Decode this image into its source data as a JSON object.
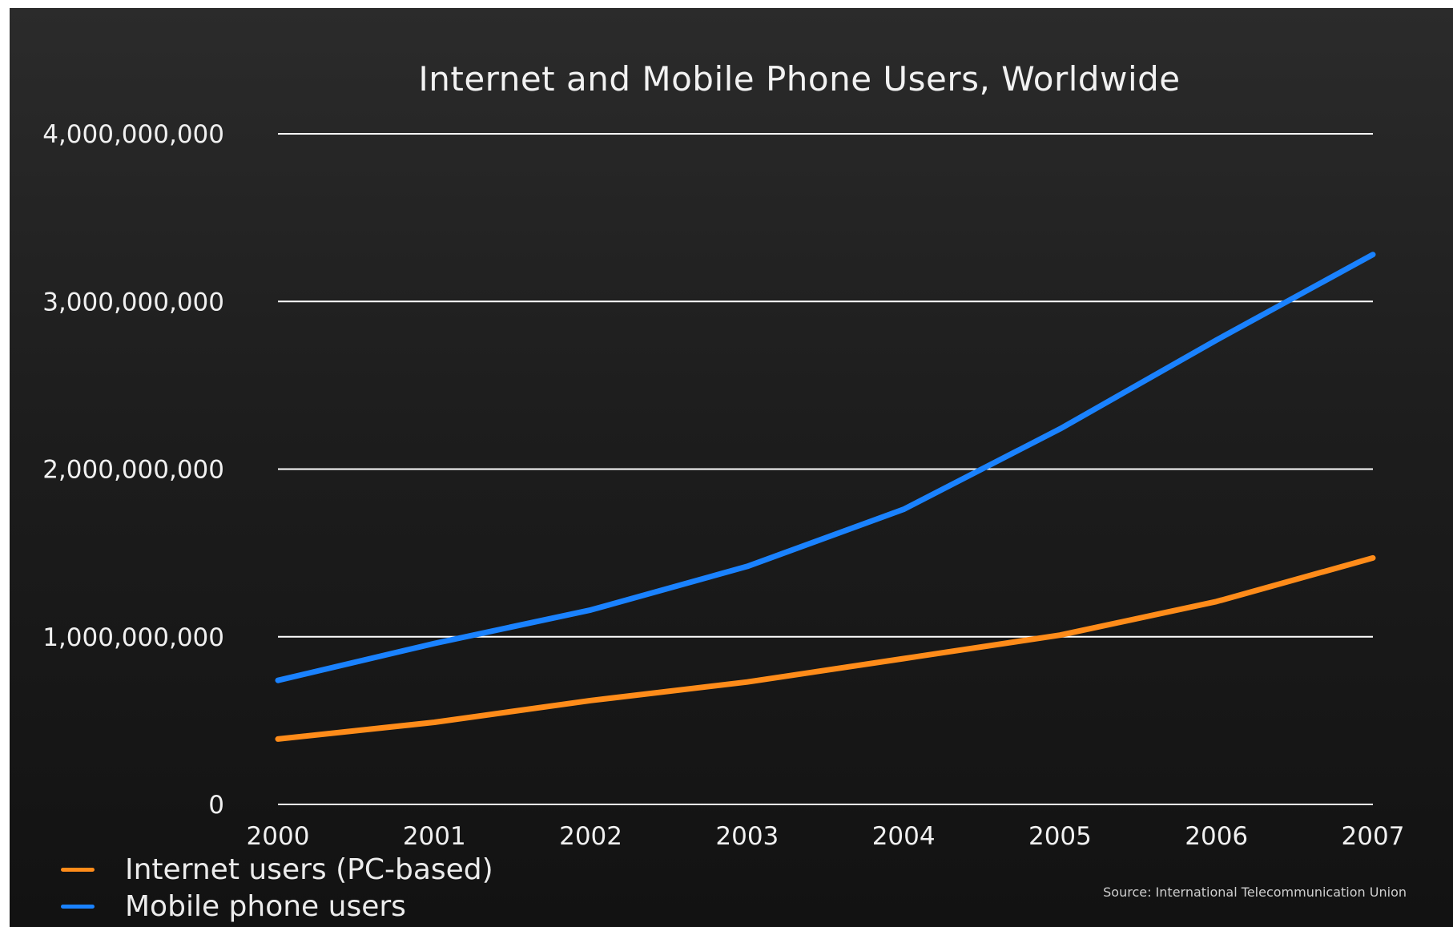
{
  "chart_data": {
    "type": "line",
    "title": "Internet and Mobile Phone Users, Worldwide",
    "xlabel": "",
    "ylabel": "",
    "x": [
      "2000",
      "2001",
      "2002",
      "2003",
      "2004",
      "2005",
      "2006",
      "2007"
    ],
    "y_ticks": [
      "0",
      "1,000,000,000",
      "2,000,000,000",
      "3,000,000,000",
      "4,000,000,000"
    ],
    "ylim": [
      0,
      4000000000
    ],
    "grid": true,
    "legend_position": "bottom-left",
    "series": [
      {
        "name": "Internet users (PC-based)",
        "color": "#ff8c1a",
        "values": [
          390000000,
          490000000,
          620000000,
          730000000,
          870000000,
          1010000000,
          1210000000,
          1470000000
        ]
      },
      {
        "name": "Mobile phone users",
        "color": "#1a82ff",
        "values": [
          740000000,
          960000000,
          1160000000,
          1420000000,
          1760000000,
          2240000000,
          2770000000,
          3280000000
        ]
      }
    ],
    "source": "Source: International Telecommunication Union"
  },
  "colors": {
    "background": "#1c1c1c",
    "grid": "#ffffff",
    "text": "#f0f0f0"
  }
}
